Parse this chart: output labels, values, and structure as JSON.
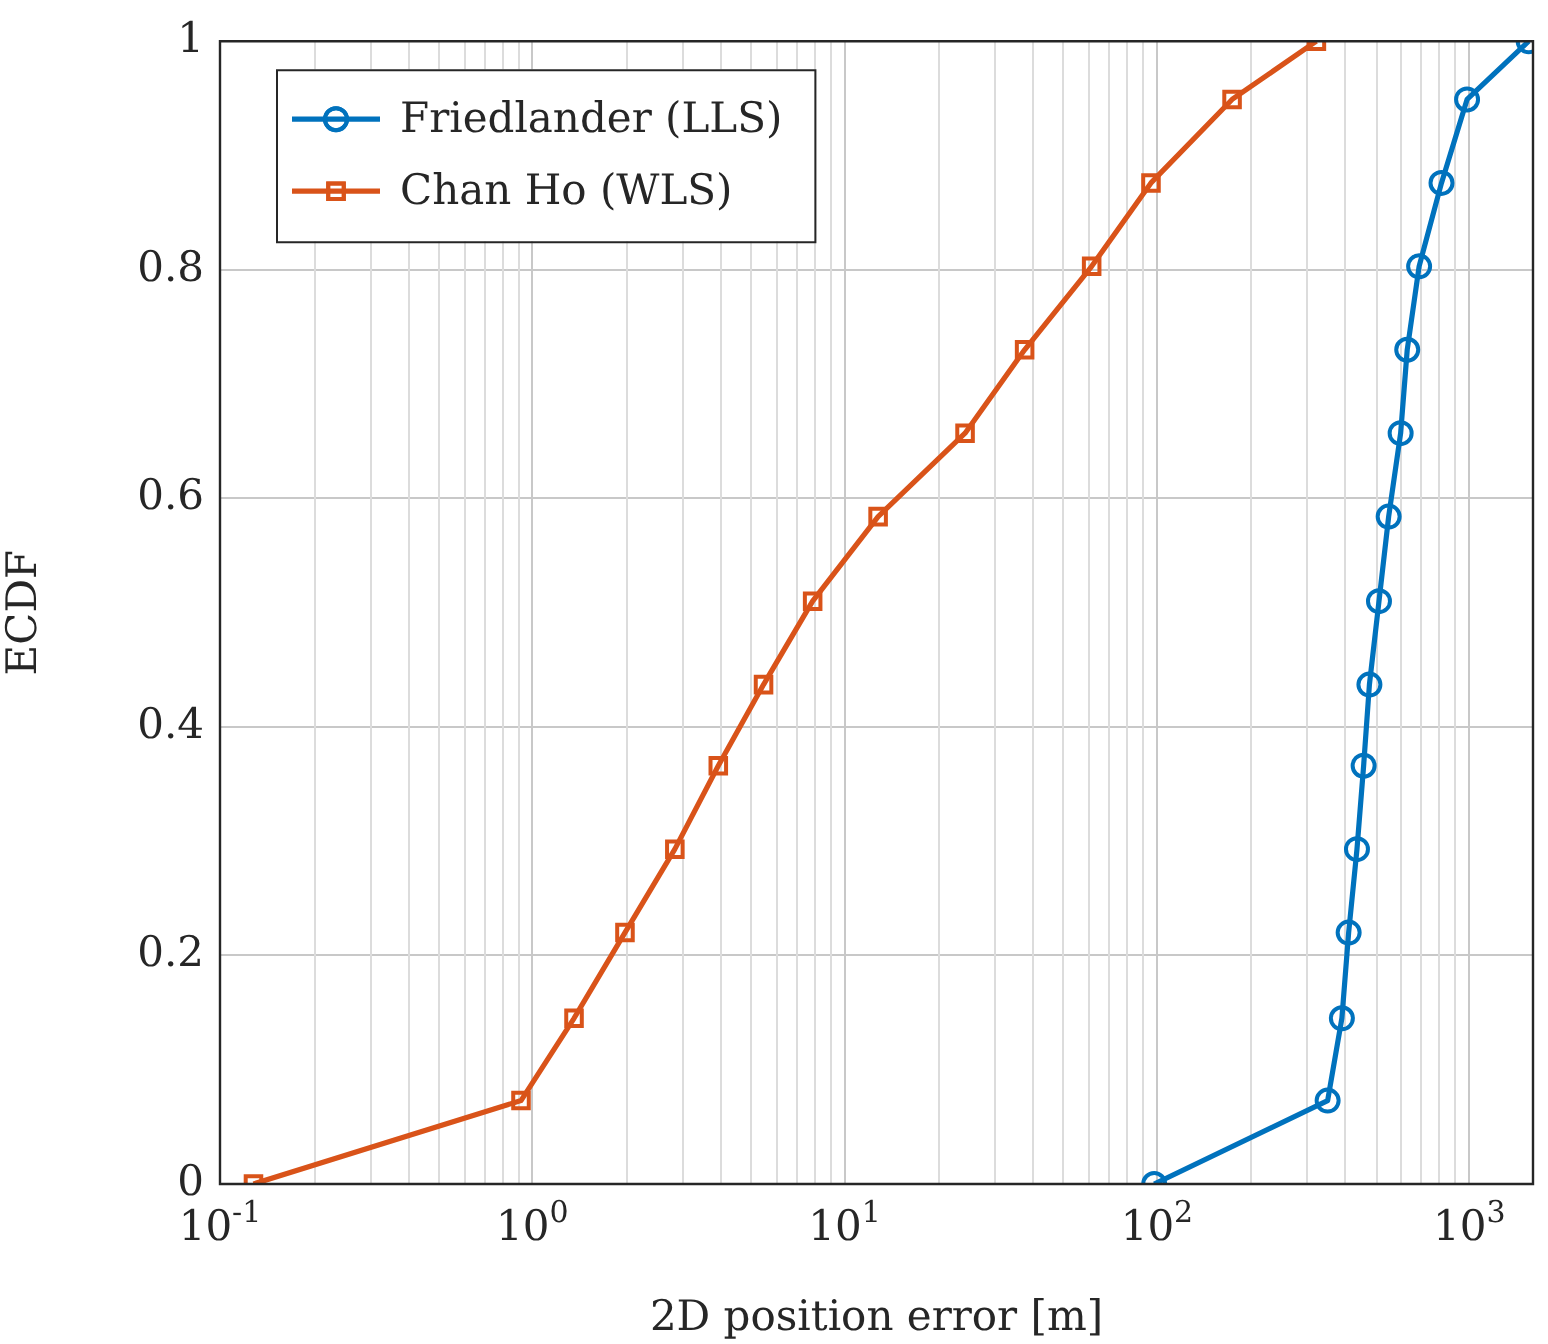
{
  "chart_data": {
    "type": "line",
    "xlabel": "2D position error [m]",
    "ylabel": "ECDF",
    "log": "x",
    "grid": true,
    "legend": "top left",
    "line_style": "solid",
    "xlim": [
      0.1,
      1600
    ],
    "ylim": [
      0,
      1
    ],
    "xticks": [
      {
        "value": 0.1,
        "label": "10$^{-1}$"
      },
      {
        "value": 1,
        "label": "10$^{0}$"
      },
      {
        "value": 10,
        "label": "10$^{1}$"
      },
      {
        "value": 100,
        "label": "10$^{2}$"
      },
      {
        "value": 1000,
        "label": "10$^{3}$"
      }
    ],
    "yticks": [
      0,
      0.2,
      0.4,
      0.6,
      0.8,
      1
    ],
    "series": [
      {
        "name": "Friedlander (LLS)",
        "color": "#0072bd",
        "marker": "circle",
        "x": [
          98,
          352,
          391,
          411,
          437,
          459,
          479,
          514,
          552,
          603,
          633,
          691,
          815,
          984,
          1550
        ],
        "values": [
          0,
          0.073,
          0.145,
          0.22,
          0.293,
          0.366,
          0.437,
          0.51,
          0.584,
          0.657,
          0.73,
          0.803,
          0.876,
          0.949,
          1
        ]
      },
      {
        "name": "Chan Ho (WLS)",
        "color": "#d95319",
        "marker": "square",
        "x": [
          0.128,
          0.92,
          1.36,
          1.98,
          2.86,
          3.94,
          5.5,
          7.9,
          12.8,
          24.3,
          37.7,
          61.8,
          95.7,
          174,
          324
        ],
        "values": [
          0,
          0.073,
          0.145,
          0.22,
          0.293,
          0.366,
          0.437,
          0.51,
          0.584,
          0.657,
          0.73,
          0.803,
          0.876,
          0.949,
          1
        ]
      }
    ]
  }
}
